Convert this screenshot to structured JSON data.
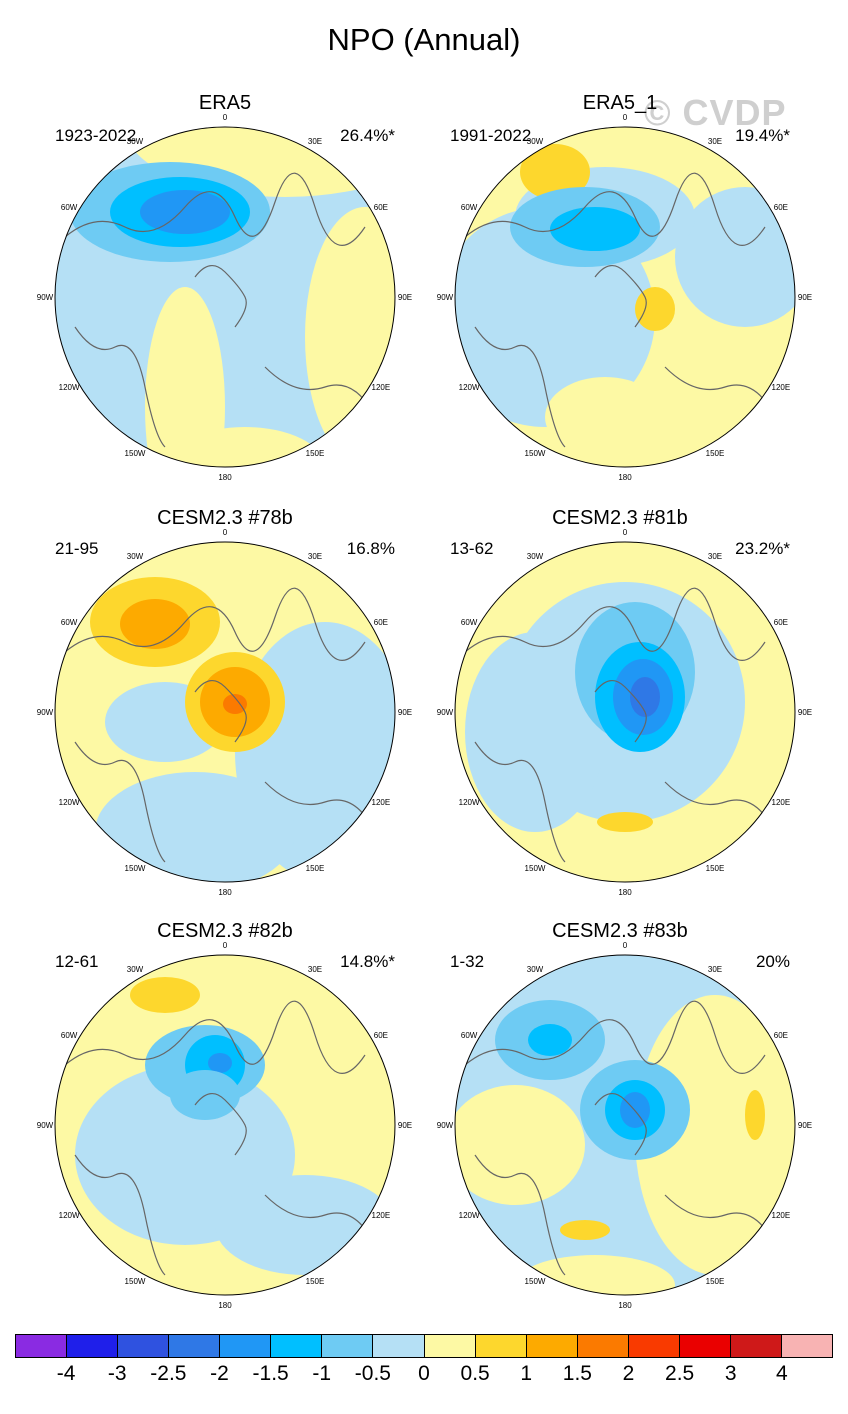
{
  "title": "NPO (Annual)",
  "watermark": "© CVDP",
  "lon_labels": [
    "180",
    "150E",
    "120E",
    "90E",
    "60E",
    "30E",
    "0",
    "30W",
    "60W",
    "90W",
    "120W",
    "150W"
  ],
  "panels": [
    {
      "title": "ERA5",
      "period": "1923-2022",
      "pct": "26.4%*"
    },
    {
      "title": "ERA5_1",
      "period": "1991-2022",
      "pct": "19.4%*"
    },
    {
      "title": "CESM2.3 #78b",
      "period": "21-95",
      "pct": "16.8%"
    },
    {
      "title": "CESM2.3 #81b",
      "period": "13-62",
      "pct": "23.2%*"
    },
    {
      "title": "CESM2.3 #82b",
      "period": "12-61",
      "pct": "14.8%*"
    },
    {
      "title": "CESM2.3 #83b",
      "period": "1-32",
      "pct": "20%"
    }
  ],
  "colorbar": {
    "colors": [
      "#8a2be2",
      "#1f1fea",
      "#2f52e0",
      "#2f78e6",
      "#2097f5",
      "#00bfff",
      "#6ecbf3",
      "#b5e0f5",
      "#fdf9a4",
      "#fdd72d",
      "#fdaa00",
      "#fb7a00",
      "#f93a00",
      "#ea0000",
      "#cf1919",
      "#f8b3b3"
    ],
    "labels": [
      "-4",
      "-3",
      "-2.5",
      "-2",
      "-1.5",
      "-1",
      "-0.5",
      "0",
      "0.5",
      "1",
      "1.5",
      "2",
      "2.5",
      "3",
      "4"
    ]
  }
}
